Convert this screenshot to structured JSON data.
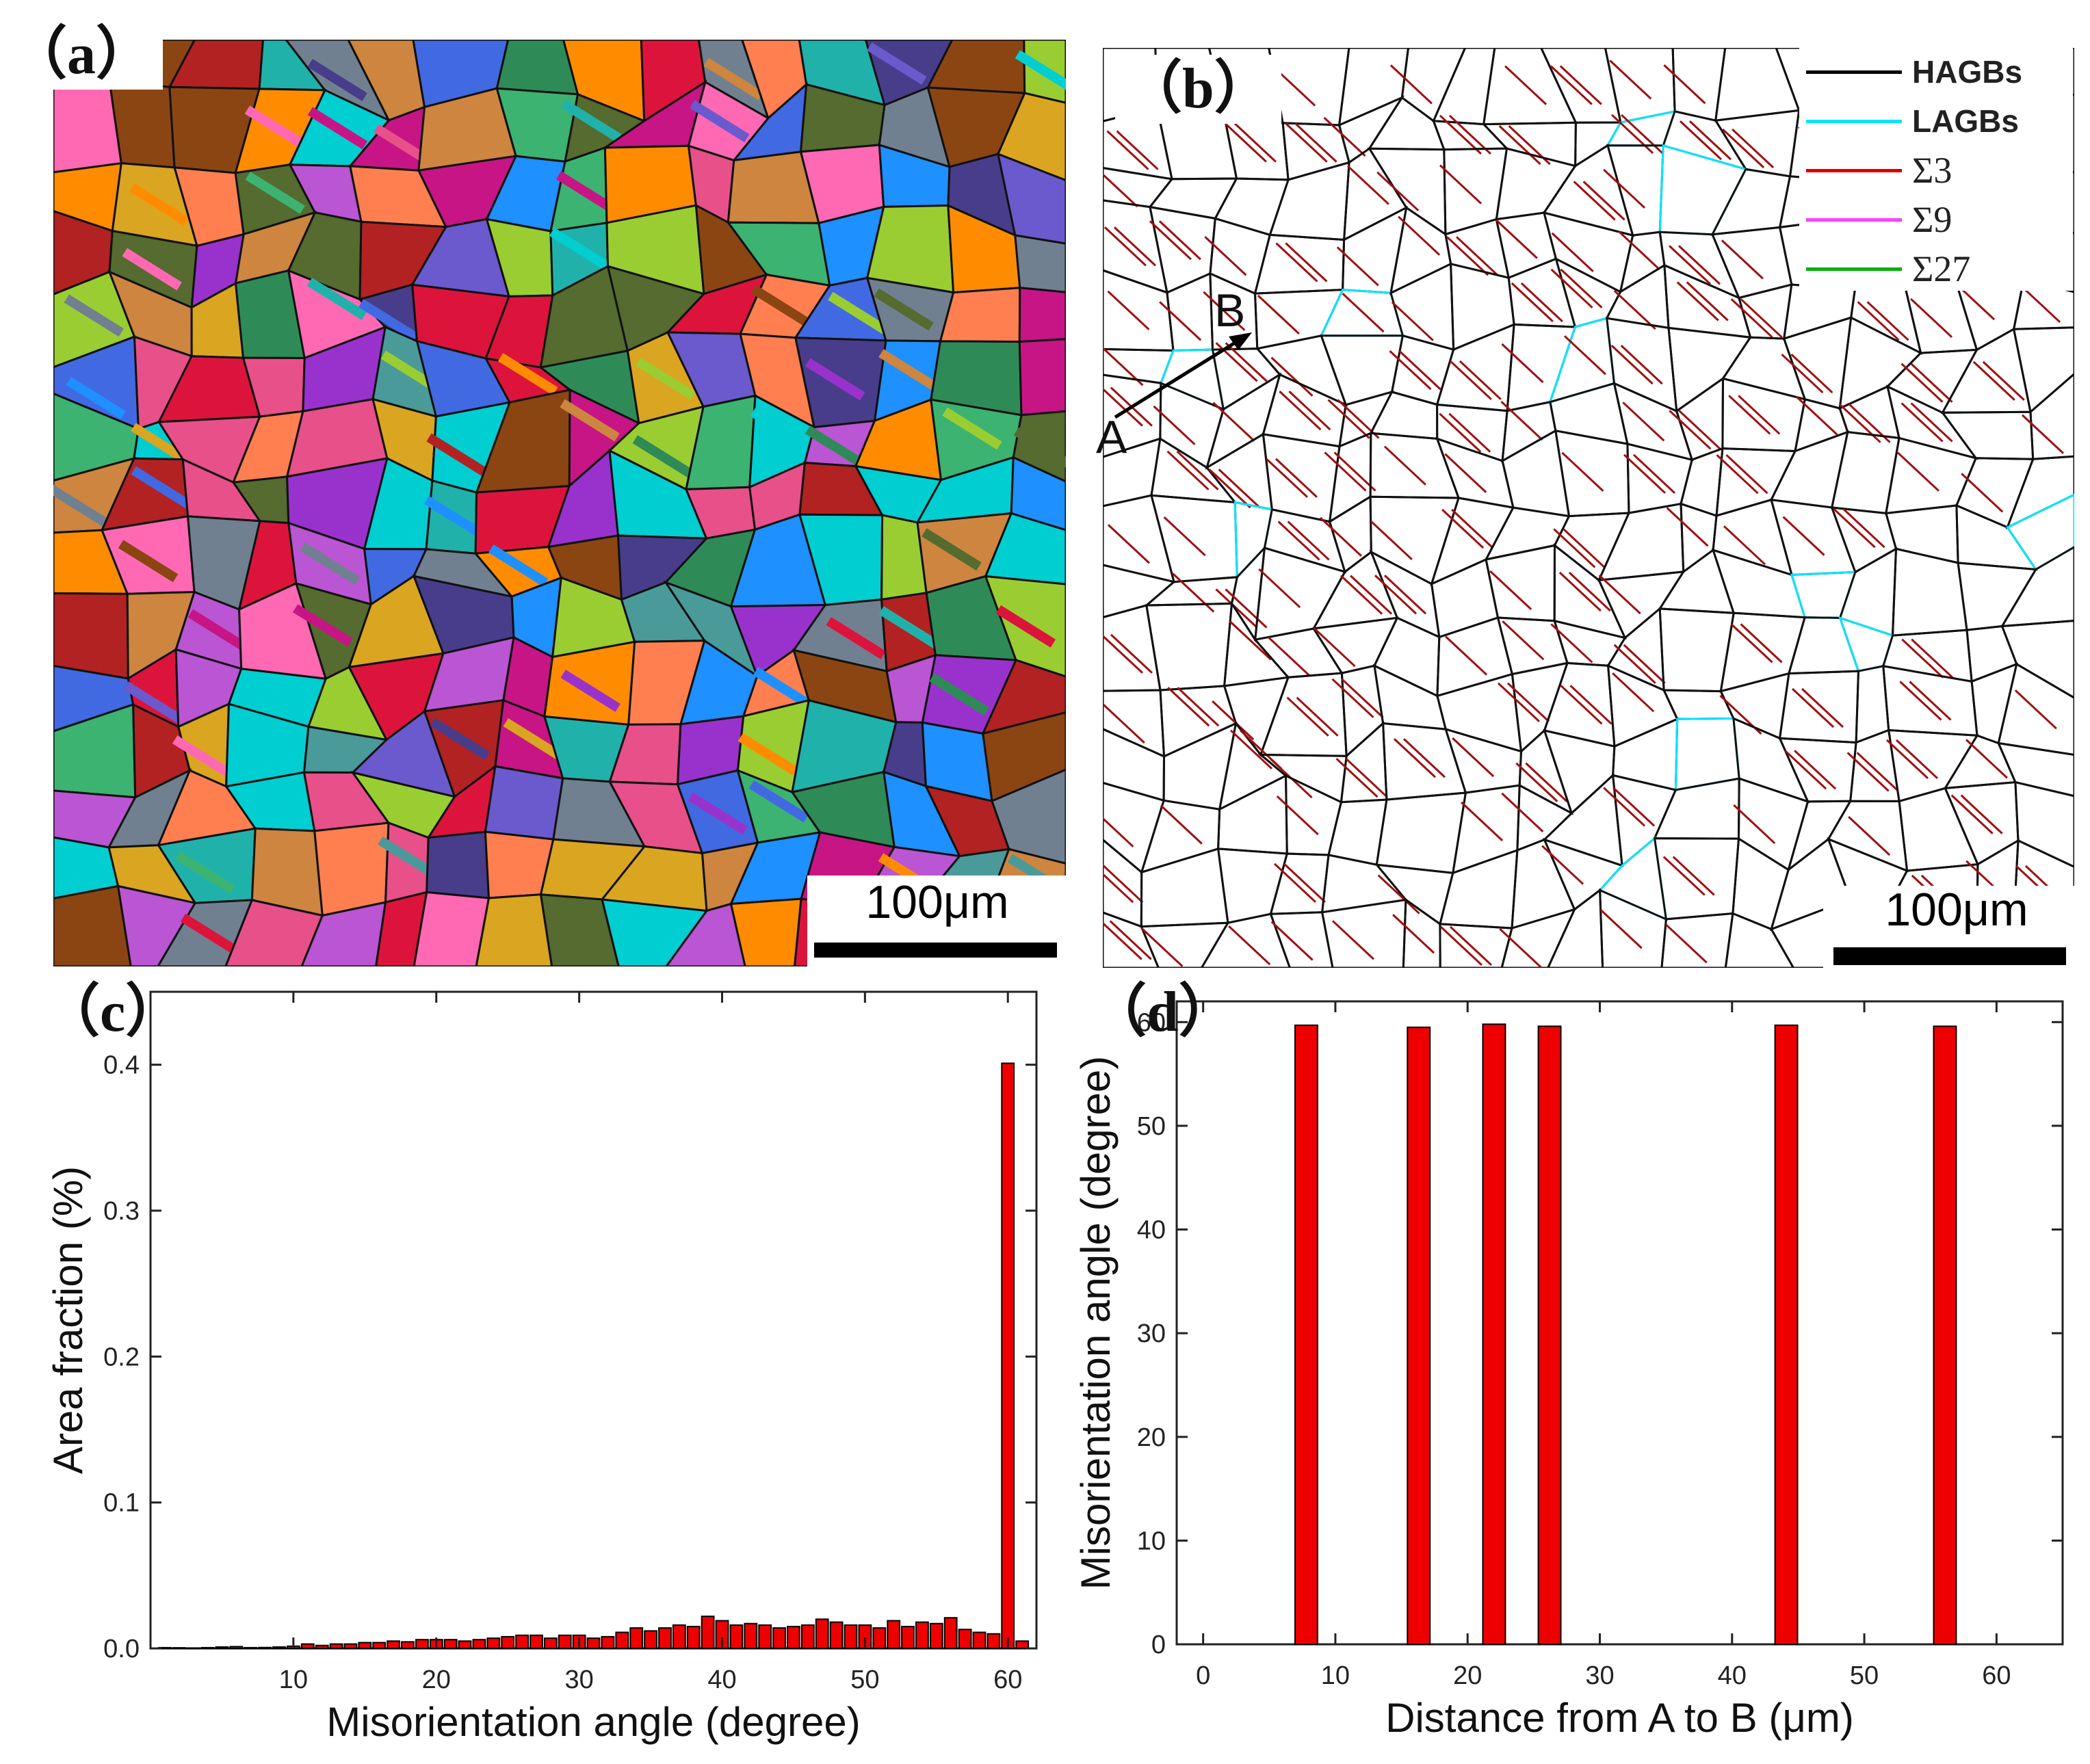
{
  "panels": {
    "a": {
      "label": "（a）",
      "scalebar": "100μm"
    },
    "b": {
      "label": "（b）",
      "scalebar": "100μm",
      "point_a": "A",
      "point_b": "B",
      "legend": [
        {
          "text": "HAGBs",
          "color": "#000000"
        },
        {
          "text": "LAGBs",
          "color": "#00e5ff"
        },
        {
          "text": "Σ3",
          "color": "#e00000"
        },
        {
          "text": "Σ9",
          "color": "#ff40ff"
        },
        {
          "text": "Σ27",
          "color": "#00b000"
        }
      ]
    },
    "c": {
      "label": "（c）"
    },
    "d": {
      "label": "（d）"
    }
  },
  "chart_data": [
    {
      "panel": "c",
      "type": "bar",
      "xlabel": "Misorientation angle (degree)",
      "ylabel": "Area fraction (%)",
      "xlim": [
        0,
        62
      ],
      "ylim": [
        0,
        0.45
      ],
      "xticks": [
        "10",
        "20",
        "30",
        "40",
        "50",
        "60"
      ],
      "yticks": [
        "0.0",
        "0.1",
        "0.2",
        "0.3",
        "0.4"
      ],
      "bar_color": "#ee0000",
      "x": [
        1,
        2,
        3,
        4,
        5,
        6,
        7,
        8,
        9,
        10,
        11,
        12,
        13,
        14,
        15,
        16,
        17,
        18,
        19,
        20,
        21,
        22,
        23,
        24,
        25,
        26,
        27,
        28,
        29,
        30,
        31,
        32,
        33,
        34,
        35,
        36,
        37,
        38,
        39,
        40,
        41,
        42,
        43,
        44,
        45,
        46,
        47,
        48,
        49,
        50,
        51,
        52,
        53,
        54,
        55,
        56,
        57,
        58,
        59,
        60,
        61
      ],
      "values": [
        0.0005,
        0.0004,
        0.0003,
        0.0005,
        0.001,
        0.0012,
        0.0005,
        0.0006,
        0.001,
        0.0015,
        0.003,
        0.002,
        0.003,
        0.003,
        0.004,
        0.004,
        0.005,
        0.0045,
        0.006,
        0.006,
        0.006,
        0.005,
        0.006,
        0.007,
        0.008,
        0.009,
        0.009,
        0.007,
        0.009,
        0.009,
        0.007,
        0.008,
        0.011,
        0.014,
        0.012,
        0.014,
        0.016,
        0.015,
        0.022,
        0.019,
        0.016,
        0.017,
        0.016,
        0.014,
        0.015,
        0.016,
        0.02,
        0.018,
        0.016,
        0.016,
        0.014,
        0.019,
        0.015,
        0.018,
        0.017,
        0.021,
        0.013,
        0.011,
        0.01,
        0.401,
        0.005
      ]
    },
    {
      "panel": "d",
      "type": "bar",
      "xlabel": "Distance from A to B (μm)",
      "ylabel": "Misorientation angle (degree)",
      "xlim": [
        -2,
        65
      ],
      "ylim": [
        0,
        62
      ],
      "xticks": [
        "0",
        "10",
        "20",
        "30",
        "40",
        "50",
        "60"
      ],
      "yticks": [
        "0",
        "10",
        "20",
        "30",
        "40",
        "50",
        "60"
      ],
      "bar_color": "#ee0000",
      "x": [
        7.8,
        16.3,
        22.0,
        26.2,
        44.1,
        56.1
      ],
      "values": [
        59.7,
        59.5,
        59.8,
        59.6,
        59.7,
        59.6
      ]
    }
  ]
}
